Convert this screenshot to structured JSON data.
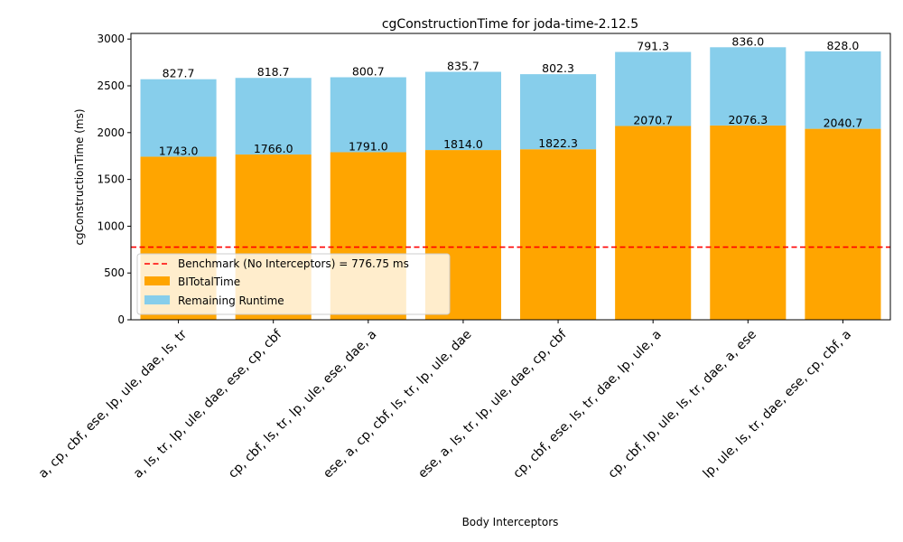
{
  "chart_data": {
    "type": "bar",
    "stacked": true,
    "title": "cgConstructionTime for joda-time-2.12.5",
    "xlabel": "Body Interceptors",
    "ylabel": "cgConstructionTime (ms)",
    "ylim": [
      0,
      3060
    ],
    "yticks": [
      0,
      500,
      1000,
      1500,
      2000,
      2500,
      3000
    ],
    "grid": false,
    "legend_position": "lower-left",
    "categories": [
      "a, cp, cbf, ese, lp, ule, dae, ls, tr",
      "a, ls, tr, lp, ule, dae, ese, cp, cbf",
      "cp, cbf, ls, tr, lp, ule, ese, dae, a",
      "ese, a, cp, cbf, ls, tr, lp, ule, dae",
      "ese, a, ls, tr, lp, ule, dae, cp, cbf",
      "cp, cbf, ese, ls, tr, dae, lp, ule, a",
      "cp, cbf, lp, ule, ls, tr, dae, a, ese",
      "lp, ule, ls, tr, dae, ese, cp, cbf, a"
    ],
    "series": [
      {
        "name": "BITotalTime",
        "color": "#ffa500",
        "values": [
          1743.0,
          1766.0,
          1791.0,
          1814.0,
          1822.3,
          2070.7,
          2076.3,
          2040.7
        ],
        "labels": [
          "1743.0",
          "1766.0",
          "1791.0",
          "1814.0",
          "1822.3",
          "2070.7",
          "2076.3",
          "2040.7"
        ]
      },
      {
        "name": "Remaining Runtime",
        "color": "#87ceeb",
        "values": [
          827.7,
          818.7,
          800.7,
          835.7,
          802.3,
          791.3,
          836.0,
          828.0
        ],
        "labels": [
          "827.7",
          "818.7",
          "800.7",
          "835.7",
          "802.3",
          "791.3",
          "836.0",
          "828.0"
        ]
      }
    ],
    "benchmark": {
      "value": 776.75,
      "label": "Benchmark (No Interceptors) = 776.75 ms",
      "color": "#ff0000"
    }
  }
}
